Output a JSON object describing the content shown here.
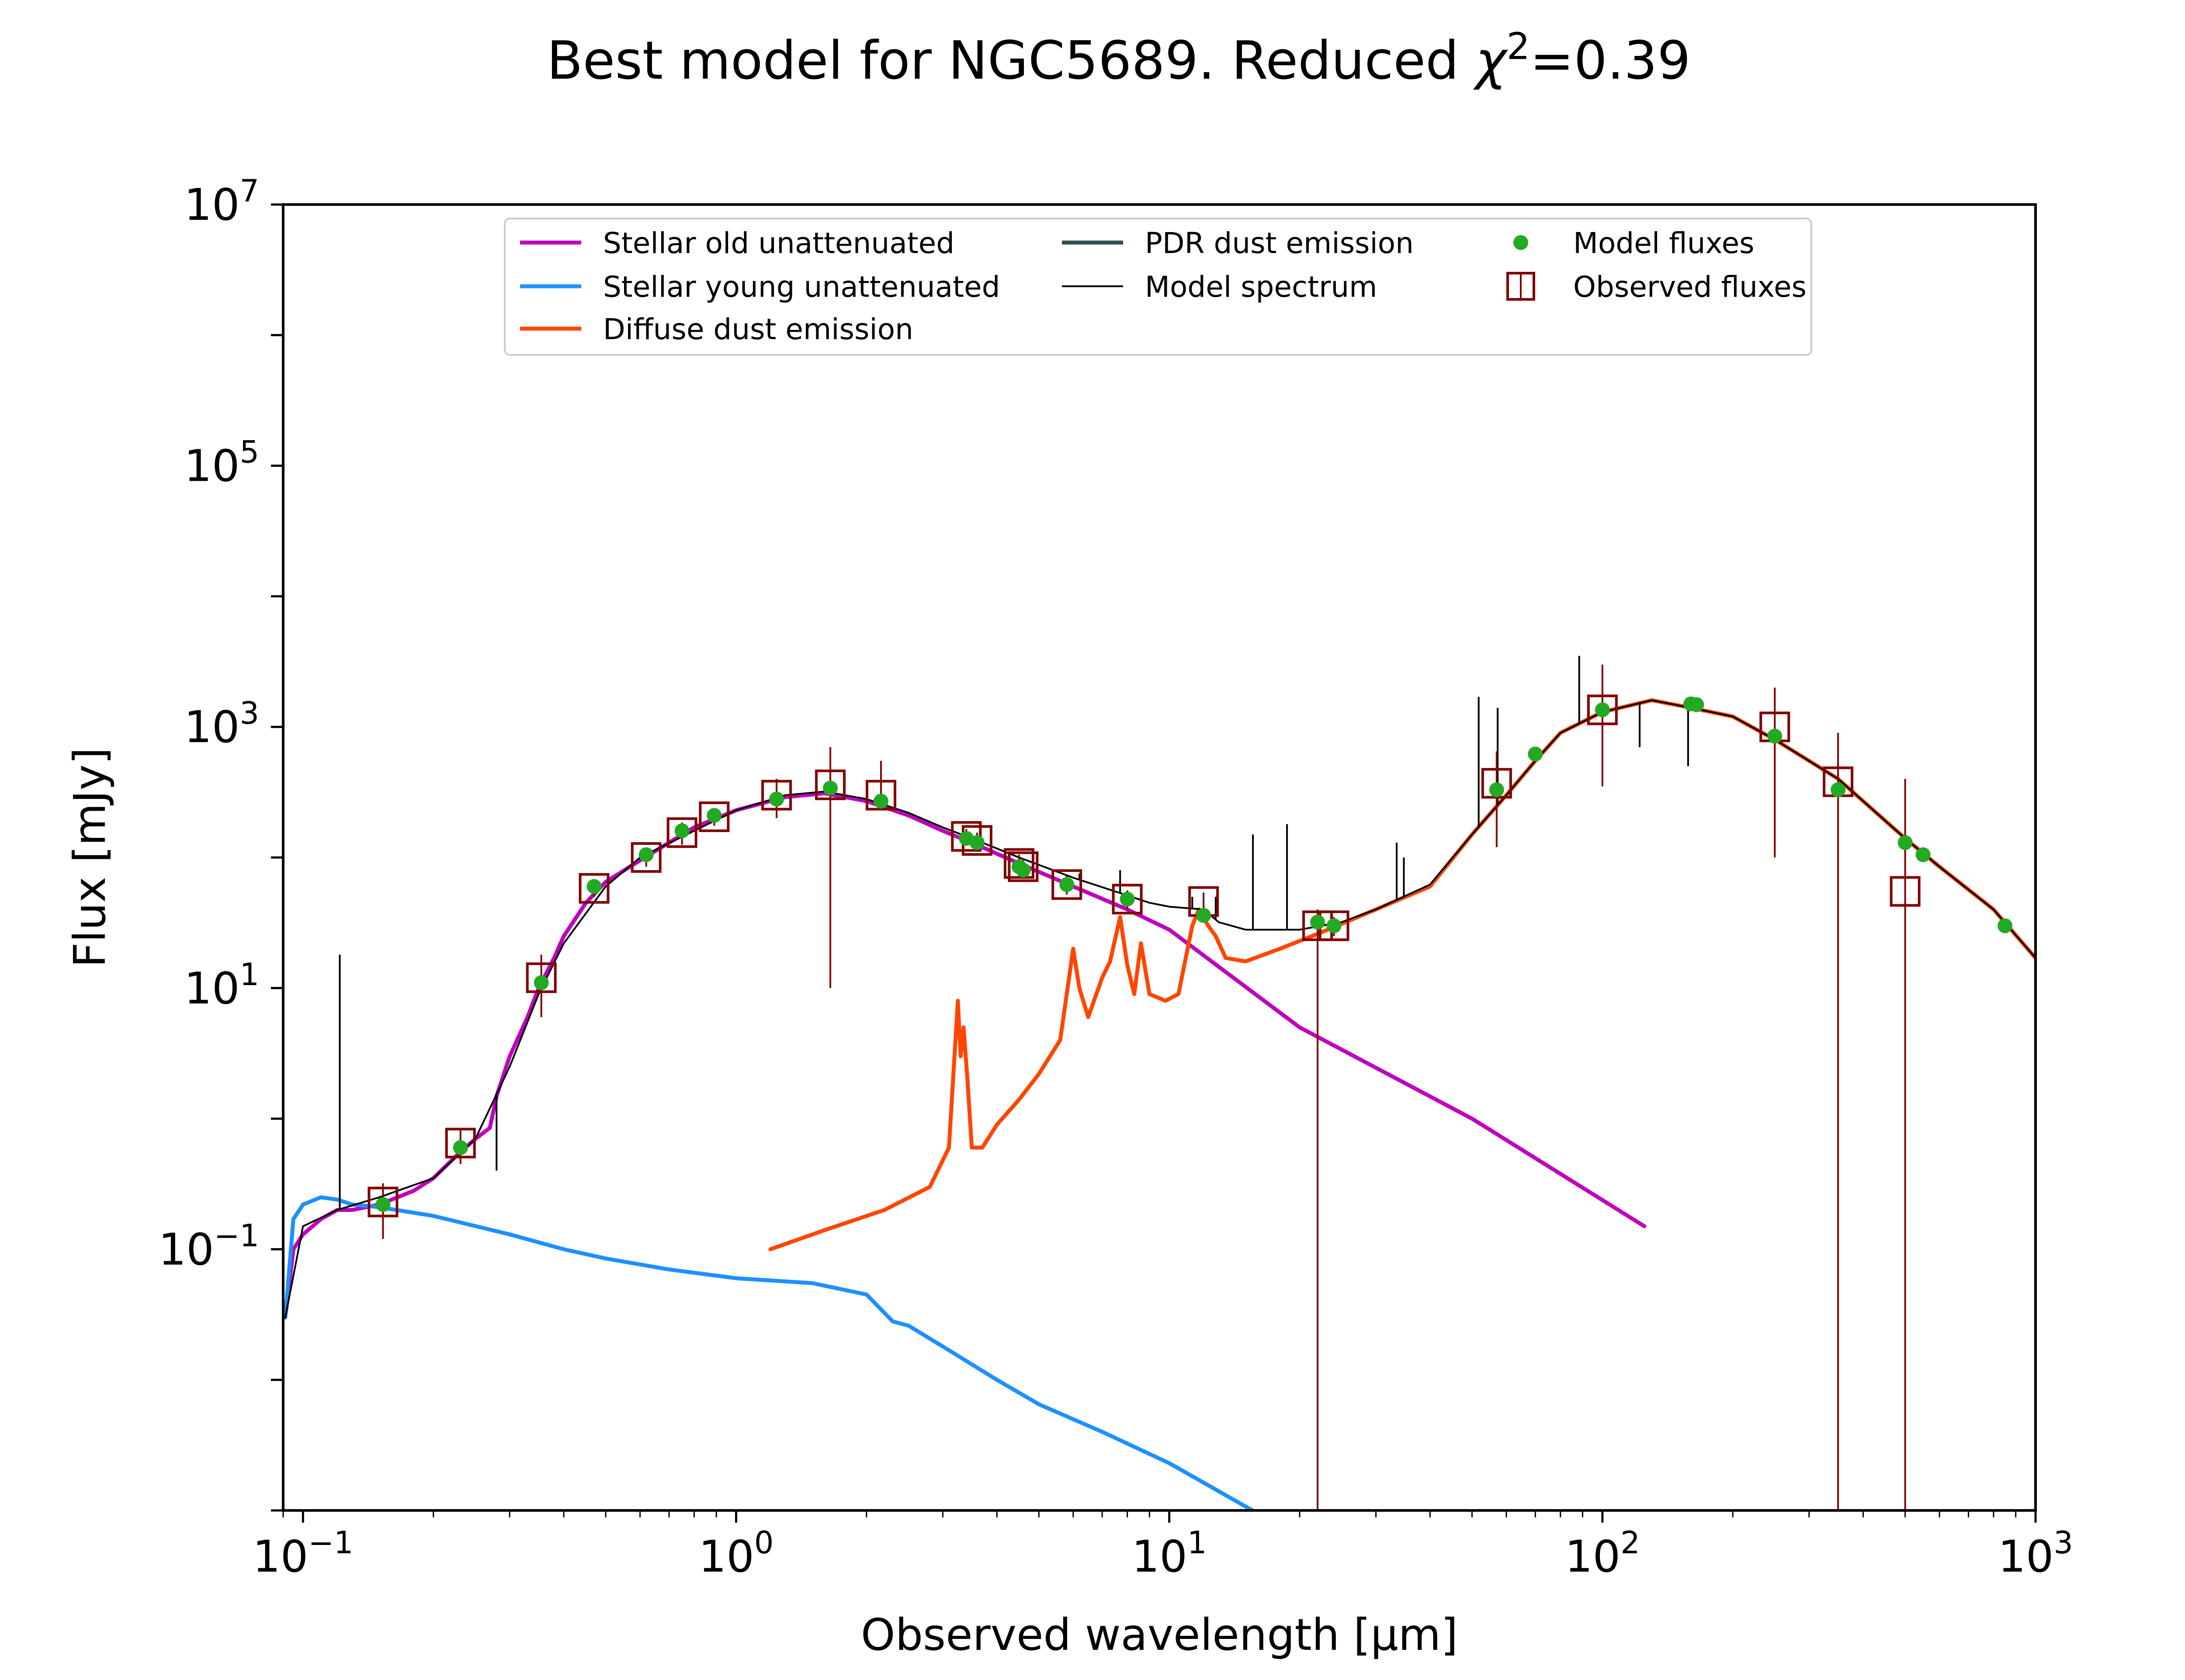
{
  "chart_data": {
    "type": "line",
    "title": "Best model for NGC5689. Reduced χ²=0.39",
    "title_main": "Best model for NGC5689. Reduced ",
    "title_chi": "χ",
    "title_sup": "2",
    "title_tail": "=0.39",
    "xlabel": "Observed wavelength [μm]",
    "ylabel": "Flux [mJy]",
    "x_scale": "log",
    "y_scale": "log",
    "xlim": [
      0.09,
      1000
    ],
    "ylim": [
      0.001,
      10000000
    ],
    "grid": false,
    "legend_placement": "top-center",
    "x_ticks": [
      {
        "value": 0.1,
        "base": "10",
        "exp": "−1"
      },
      {
        "value": 1,
        "base": "10",
        "exp": "0"
      },
      {
        "value": 10,
        "base": "10",
        "exp": "1"
      },
      {
        "value": 100,
        "base": "10",
        "exp": "2"
      },
      {
        "value": 1000,
        "base": "10",
        "exp": "3"
      }
    ],
    "y_ticks": [
      {
        "value": 0.1,
        "base": "10",
        "exp": "−1"
      },
      {
        "value": 10,
        "base": "10",
        "exp": "1"
      },
      {
        "value": 1000,
        "base": "10",
        "exp": "3"
      },
      {
        "value": 100000,
        "base": "10",
        "exp": "5"
      },
      {
        "value": 10000000,
        "base": "10",
        "exp": "7"
      }
    ],
    "legend": [
      {
        "label": "Stellar old unattenuated",
        "kind": "line",
        "color": "#bf00bf",
        "col": 0,
        "row": 0
      },
      {
        "label": "Stellar young unattenuated",
        "kind": "line",
        "color": "#1e90ff",
        "col": 0,
        "row": 1
      },
      {
        "label": "Diffuse dust emission",
        "kind": "line",
        "color": "#ff4500",
        "col": 0,
        "row": 2
      },
      {
        "label": "PDR dust emission",
        "kind": "line",
        "color": "#2f4f4f",
        "col": 1,
        "row": 0
      },
      {
        "label": "Model spectrum",
        "kind": "thinline",
        "color": "#000000",
        "col": 1,
        "row": 1
      },
      {
        "label": "Model fluxes",
        "kind": "dot",
        "color": "#22aa22",
        "col": 2,
        "row": 0
      },
      {
        "label": "Observed fluxes",
        "kind": "square",
        "color": "#800000",
        "col": 2,
        "row": 1
      }
    ],
    "series": [
      {
        "name": "Stellar old unattenuated",
        "color": "#bf00bf",
        "x": [
          0.091,
          0.095,
          0.1,
          0.11,
          0.12,
          0.13,
          0.15,
          0.18,
          0.2,
          0.23,
          0.25,
          0.27,
          0.28,
          0.3,
          0.33,
          0.35,
          0.38,
          0.4,
          0.45,
          0.5,
          0.6,
          0.7,
          0.8,
          1.0,
          1.3,
          1.6,
          2.0,
          2.5,
          3.0,
          3.5,
          4.5,
          6.0,
          8.0,
          10.0,
          20.0,
          50.0,
          125.0
        ],
        "y": [
          0.03,
          0.1,
          0.13,
          0.17,
          0.2,
          0.2,
          0.22,
          0.28,
          0.35,
          0.55,
          0.7,
          0.85,
          1.5,
          3.0,
          6.0,
          10.0,
          17.0,
          25.0,
          45.0,
          65.0,
          95.0,
          130.0,
          170.0,
          230.0,
          290.0,
          310.0,
          270.0,
          210.0,
          160.0,
          130.0,
          90.0,
          60.0,
          40.0,
          28.0,
          5.0,
          1.0,
          0.15
        ]
      },
      {
        "name": "Stellar young unattenuated",
        "color": "#1e90ff",
        "x": [
          0.091,
          0.095,
          0.1,
          0.11,
          0.12,
          0.13,
          0.15,
          0.2,
          0.3,
          0.4,
          0.5,
          0.7,
          1.0,
          1.5,
          2.0,
          2.3,
          2.5,
          3.0,
          4.0,
          5.0,
          7.0,
          10.0,
          16.0
        ],
        "y": [
          0.03,
          0.17,
          0.22,
          0.25,
          0.24,
          0.22,
          0.21,
          0.18,
          0.13,
          0.1,
          0.085,
          0.07,
          0.06,
          0.055,
          0.045,
          0.028,
          0.026,
          0.018,
          0.01,
          0.0065,
          0.004,
          0.0023,
          0.00095
        ]
      },
      {
        "name": "Diffuse dust emission",
        "color": "#ff4500",
        "x": [
          1.2,
          1.6,
          2.2,
          2.8,
          3.1,
          3.25,
          3.3,
          3.35,
          3.42,
          3.5,
          3.7,
          4.0,
          4.5,
          5.0,
          5.6,
          6.0,
          6.2,
          6.5,
          7.0,
          7.3,
          7.7,
          8.0,
          8.3,
          8.6,
          9.0,
          9.8,
          10.5,
          11.3,
          11.7,
          12.3,
          12.8,
          13.5,
          15.0,
          18.0,
          22.0,
          30.0,
          40.0,
          50.0,
          60.0,
          70.0,
          80.0,
          100.0,
          130.0,
          160.0,
          200.0,
          250.0,
          350.0,
          500.0,
          600.0,
          800.0,
          1000.0
        ],
        "y": [
          0.1,
          0.14,
          0.2,
          0.3,
          0.6,
          8.0,
          3.0,
          5.0,
          2.0,
          0.6,
          0.6,
          0.9,
          1.4,
          2.2,
          4.0,
          20.0,
          10.0,
          6.0,
          12.0,
          16.0,
          35.0,
          15.0,
          9.0,
          22.0,
          9.0,
          8.0,
          9.0,
          30.0,
          40.0,
          30.0,
          25.0,
          17.0,
          16.0,
          20.0,
          26.0,
          40.0,
          60.0,
          150.0,
          300.0,
          550.0,
          900.0,
          1300.0,
          1600.0,
          1400.0,
          1200.0,
          800.0,
          400.0,
          140.0,
          85.0,
          40.0,
          17.0
        ]
      },
      {
        "name": "Model spectrum",
        "color": "#000000",
        "x": [
          0.091,
          0.1,
          0.12,
          0.15,
          0.2,
          0.25,
          0.3,
          0.35,
          0.4,
          0.5,
          0.6,
          0.8,
          1.0,
          1.3,
          1.6,
          2.0,
          2.5,
          3.0,
          3.5,
          4.5,
          6.0,
          7.5,
          9.0,
          10.0,
          12.0,
          13.0,
          15.0,
          20.0,
          25.0,
          30.0,
          40.0,
          50.0,
          60.0,
          70.0,
          80.0,
          100.0,
          130.0,
          160.0,
          200.0,
          250.0,
          350.0,
          500.0,
          600.0,
          800.0,
          1000.0
        ],
        "y": [
          0.03,
          0.15,
          0.2,
          0.25,
          0.35,
          0.7,
          2.5,
          9.0,
          22.0,
          60.0,
          100.0,
          160.0,
          230.0,
          300.0,
          320.0,
          280.0,
          220.0,
          170.0,
          140.0,
          100.0,
          70.0,
          55.0,
          45.0,
          42.0,
          40.0,
          32.0,
          28.0,
          28.0,
          32.0,
          40.0,
          62.0,
          150.0,
          300.0,
          550.0,
          900.0,
          1300.0,
          1600.0,
          1400.0,
          1200.0,
          800.0,
          400.0,
          140.0,
          85.0,
          40.0,
          17.0
        ]
      }
    ],
    "model_spectrum_lines": [
      {
        "x": 0.1216,
        "y": 18.0
      },
      {
        "x": 0.2798,
        "y": 0.4
      },
      {
        "x": 3.3,
        "y": 150.0
      },
      {
        "x": 6.2,
        "y": 75.0
      },
      {
        "x": 7.7,
        "y": 80.0
      },
      {
        "x": 8.6,
        "y": 60.0
      },
      {
        "x": 11.3,
        "y": 50.0
      },
      {
        "x": 12.8,
        "y": 50.0
      },
      {
        "x": 15.6,
        "y": 150.0
      },
      {
        "x": 18.7,
        "y": 180.0
      },
      {
        "x": 33.5,
        "y": 130.0
      },
      {
        "x": 34.8,
        "y": 100.0
      },
      {
        "x": 51.8,
        "y": 1700.0
      },
      {
        "x": 57.3,
        "y": 1400.0
      },
      {
        "x": 88.4,
        "y": 3500.0
      },
      {
        "x": 121.9,
        "y": 700.0
      },
      {
        "x": 157.7,
        "y": 500.0
      }
    ],
    "model_fluxes": {
      "x": [
        0.153,
        0.231,
        0.355,
        0.47,
        0.62,
        0.75,
        0.89,
        1.24,
        1.65,
        2.16,
        3.4,
        3.6,
        4.5,
        4.6,
        5.8,
        8.0,
        12.0,
        22.0,
        24.0,
        57.0,
        70.0,
        100.0,
        160.0,
        165.0,
        250.0,
        350.0,
        500.0,
        550.0,
        850.0
      ],
      "y": [
        0.22,
        0.6,
        11.0,
        60.0,
        105.0,
        160.0,
        210.0,
        280.0,
        340.0,
        270.0,
        140.0,
        130.0,
        85.0,
        80.0,
        62.0,
        48.0,
        36.0,
        32.0,
        30.0,
        330.0,
        620.0,
        1350.0,
        1500.0,
        1480.0,
        850.0,
        330.0,
        130.0,
        105.0,
        30.0
      ]
    },
    "observed_fluxes": {
      "x": [
        0.153,
        0.231,
        0.355,
        0.47,
        0.62,
        0.75,
        0.89,
        1.24,
        1.65,
        2.16,
        3.4,
        3.6,
        4.5,
        4.6,
        5.8,
        8.0,
        12.0,
        22.0,
        24.0,
        57.0,
        100.0,
        250.0,
        350.0,
        500.0
      ],
      "y": [
        0.23,
        0.65,
        12.0,
        58.0,
        100.0,
        155.0,
        205.0,
        300.0,
        360.0,
        300.0,
        145.0,
        135.0,
        90.0,
        85.0,
        62.0,
        48.0,
        46.0,
        30.0,
        30.0,
        370.0,
        1350.0,
        1000.0,
        380.0,
        55.0
      ],
      "yerr_low": [
        0.12,
        0.45,
        6.0,
        50.0,
        85.0,
        125.0,
        175.0,
        200.0,
        10.0,
        250.0,
        125.0,
        115.0,
        75.0,
        72.0,
        52.0,
        40.0,
        38.0,
        0.001,
        25.0,
        120.0,
        350.0,
        100.0,
        0.001,
        0.001
      ],
      "yerr_high": [
        0.32,
        0.85,
        18.0,
        66.0,
        115.0,
        185.0,
        235.0,
        400.0,
        700.0,
        550.0,
        165.0,
        155.0,
        105.0,
        98.0,
        72.0,
        56.0,
        54.0,
        40.0,
        35.0,
        650.0,
        3000.0,
        2000.0,
        900.0,
        400.0
      ]
    }
  }
}
